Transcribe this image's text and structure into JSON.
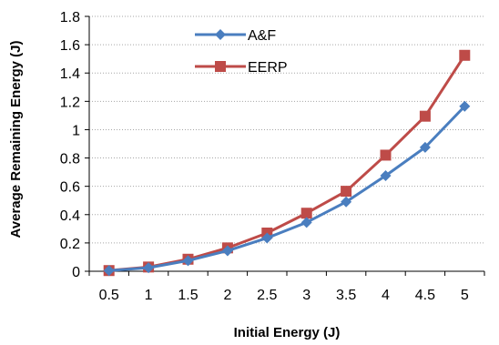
{
  "chart_data": {
    "type": "line",
    "title": "",
    "xlabel": "Initial Energy (J)",
    "ylabel": "Average Remaining Energy (J)",
    "categories": [
      "0.5",
      "1",
      "1.5",
      "2",
      "2.5",
      "3",
      "3.5",
      "4",
      "4.5",
      "5"
    ],
    "ylim": [
      0,
      1.8
    ],
    "yticks": [
      "0",
      "0.2",
      "0.4",
      "0.6",
      "0.8",
      "1",
      "1.2",
      "1.4",
      "1.6",
      "1.8"
    ],
    "grid": "horizontal dotted",
    "legend_position": "top-left inside",
    "series": [
      {
        "name": "A&F",
        "color": "#4a7ebf",
        "marker": "diamond",
        "values": [
          0.005,
          0.025,
          0.075,
          0.145,
          0.235,
          0.345,
          0.49,
          0.675,
          0.875,
          1.165
        ]
      },
      {
        "name": "EERP",
        "color": "#be4b48",
        "marker": "square",
        "values": [
          0.005,
          0.03,
          0.085,
          0.165,
          0.27,
          0.41,
          0.565,
          0.82,
          1.095,
          1.525
        ]
      }
    ]
  }
}
